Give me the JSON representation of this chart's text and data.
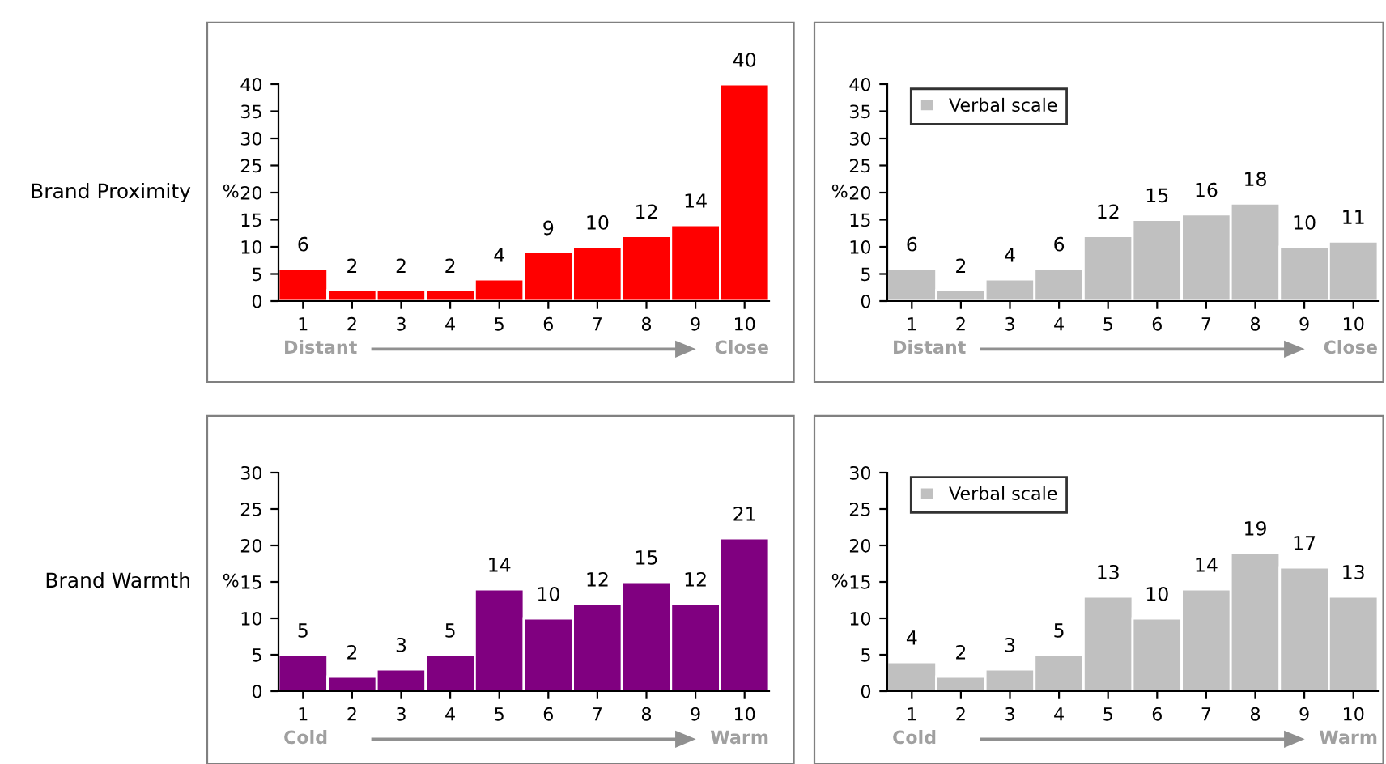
{
  "chart_data": [
    {
      "type": "bar",
      "title": "Brand Proximity",
      "ylabel": "%",
      "categories": [
        "1",
        "2",
        "3",
        "4",
        "5",
        "6",
        "7",
        "8",
        "9",
        "10"
      ],
      "series": [
        {
          "color": "#ff0000",
          "values": [
            6,
            2,
            2,
            2,
            4,
            9,
            10,
            12,
            14,
            40
          ]
        }
      ],
      "ylim": [
        0,
        40
      ],
      "yticks": [
        0,
        5,
        10,
        15,
        20,
        25,
        30,
        35,
        40
      ],
      "data_labels": true,
      "annotations": [
        "Distant",
        "Close"
      ]
    },
    {
      "type": "bar",
      "ylabel": "%",
      "categories": [
        "1",
        "2",
        "3",
        "4",
        "5",
        "6",
        "7",
        "8",
        "9",
        "10"
      ],
      "series": [
        {
          "name": "Verbal scale",
          "color": "#c0c0c0",
          "values": [
            6,
            2,
            4,
            6,
            12,
            15,
            16,
            18,
            10,
            11
          ]
        }
      ],
      "ylim": [
        0,
        40
      ],
      "yticks": [
        0,
        5,
        10,
        15,
        20,
        25,
        30,
        35,
        40
      ],
      "data_labels": true,
      "legend": "top left",
      "annotations": [
        "Distant",
        "Close"
      ]
    },
    {
      "type": "bar",
      "title": "Brand Warmth",
      "ylabel": "%",
      "categories": [
        "1",
        "2",
        "3",
        "4",
        "5",
        "6",
        "7",
        "8",
        "9",
        "10"
      ],
      "series": [
        {
          "color": "#800080",
          "values": [
            5,
            2,
            3,
            5,
            14,
            10,
            12,
            15,
            12,
            21
          ]
        }
      ],
      "ylim": [
        0,
        30
      ],
      "yticks": [
        0,
        5,
        10,
        15,
        20,
        25,
        30
      ],
      "data_labels": true,
      "annotations": [
        "Cold",
        "Warm"
      ]
    },
    {
      "type": "bar",
      "ylabel": "%",
      "categories": [
        "1",
        "2",
        "3",
        "4",
        "5",
        "6",
        "7",
        "8",
        "9",
        "10"
      ],
      "series": [
        {
          "name": "Verbal scale",
          "color": "#c0c0c0",
          "values": [
            4,
            2,
            3,
            5,
            13,
            10,
            14,
            19,
            17,
            13
          ]
        }
      ],
      "ylim": [
        0,
        30
      ],
      "yticks": [
        0,
        5,
        10,
        15,
        20,
        25,
        30
      ],
      "data_labels": true,
      "legend": "top left",
      "annotations": [
        "Cold",
        "Warm"
      ]
    }
  ]
}
